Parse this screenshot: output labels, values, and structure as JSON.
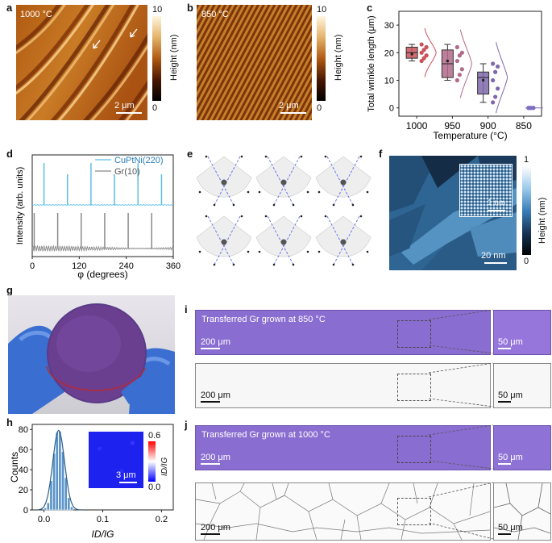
{
  "panels": {
    "a": {
      "letter": "a",
      "temp": "1000 °C",
      "scale": "2 μm",
      "cbar_max": "10",
      "cbar_min": "0",
      "cbar_label": "Height (nm)"
    },
    "b": {
      "letter": "b",
      "temp": "850 °C",
      "scale": "2 μm",
      "cbar_max": "10",
      "cbar_min": "0",
      "cbar_label": "Height (nm)"
    },
    "c": {
      "letter": "c"
    },
    "d": {
      "letter": "d"
    },
    "e": {
      "letter": "e"
    },
    "f": {
      "letter": "f",
      "scale_main": "20 nm",
      "scale_inset": "1 nm",
      "cbar_max": "1",
      "cbar_min": "0",
      "cbar_label": "Height (nm)"
    },
    "g": {
      "letter": "g"
    },
    "h": {
      "letter": "h",
      "inset_scale": "3 μm",
      "cbar_max": "0.6",
      "cbar_min": "0.0",
      "cbar_label": "ID/IG"
    },
    "i": {
      "letter": "i",
      "title": "Transferred Gr grown at 850 °C",
      "scale_main": "200 μm",
      "scale_zoom": "50 μm"
    },
    "j": {
      "letter": "j",
      "title": "Transferred Gr grown at 1000 °C",
      "scale_main": "200 μm",
      "scale_zoom": "50 μm"
    }
  },
  "chart_data": [
    {
      "id": "c",
      "type": "box",
      "ylabel": "Total wrinkle length (μm)",
      "xlabel": "Temperature (°C)",
      "categories": [
        "1000",
        "950",
        "900",
        "850"
      ],
      "yticks": [
        0,
        10,
        20,
        30
      ],
      "ylim": [
        -3,
        35
      ],
      "colors": [
        "#c9525b",
        "#b06a8a",
        "#7f68aa",
        "#7f6fbf"
      ],
      "boxes": [
        {
          "q1": 18,
          "median": 20,
          "q3": 22,
          "whislo": 17,
          "whishi": 23,
          "mean": 19.5,
          "points": [
            17,
            18,
            19,
            20,
            21,
            22,
            23
          ]
        },
        {
          "q1": 11,
          "median": 16,
          "q3": 21,
          "whislo": 10,
          "whishi": 23,
          "mean": 17,
          "points": [
            10,
            12,
            14,
            17,
            19,
            20,
            22
          ]
        },
        {
          "q1": 5,
          "median": 11,
          "q3": 13,
          "whislo": 2,
          "whishi": 16,
          "mean": 10,
          "points": [
            2,
            4,
            7,
            10,
            13,
            15,
            16
          ]
        },
        {
          "q1": 0,
          "median": 0,
          "q3": 0,
          "whislo": 0,
          "whishi": 0,
          "mean": 0,
          "points": [
            0,
            0,
            0,
            0,
            0,
            0
          ]
        }
      ]
    },
    {
      "id": "d",
      "type": "line",
      "ylabel": "Intensity (arb. units)",
      "xlabel": "φ (degrees)",
      "xticks": [
        0,
        120,
        240,
        360
      ],
      "xlim": [
        0,
        360
      ],
      "series": [
        {
          "name": "CuPtNi(220)",
          "color": "#5bbfe3",
          "peaks": [
            30,
            90,
            150,
            210,
            270,
            330
          ]
        },
        {
          "name": "Gr(10)",
          "color": "#8a8a8a",
          "peaks": [
            5,
            65,
            125,
            185,
            245,
            305
          ]
        }
      ]
    },
    {
      "id": "h",
      "type": "histogram",
      "ylabel": "Counts",
      "xlabel": "ID/IG",
      "xticks": [
        0.0,
        0.1,
        0.2
      ],
      "yticks": [
        0,
        20,
        40,
        60,
        80
      ],
      "xlim": [
        -0.02,
        0.22
      ],
      "ylim": [
        0,
        85
      ],
      "bin_width": 0.005,
      "bins": [
        [
          0.0,
          2
        ],
        [
          0.005,
          7
        ],
        [
          0.01,
          29
        ],
        [
          0.015,
          56
        ],
        [
          0.02,
          77
        ],
        [
          0.025,
          78
        ],
        [
          0.03,
          58
        ],
        [
          0.035,
          32
        ],
        [
          0.04,
          12
        ],
        [
          0.045,
          3
        ]
      ]
    }
  ]
}
